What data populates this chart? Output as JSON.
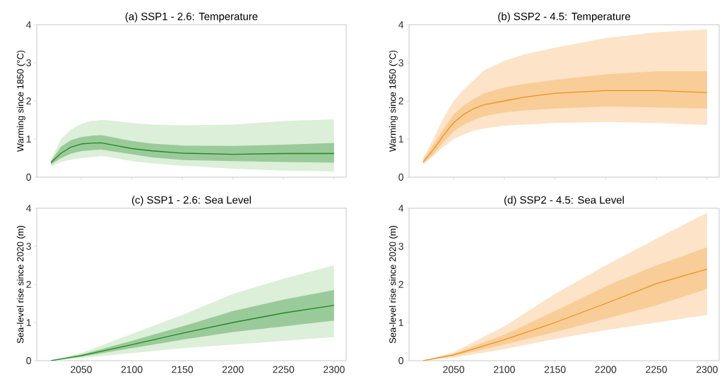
{
  "chart_data": [
    {
      "type": "line",
      "title": "(a) SSP1 - 2.6: Temperature",
      "ylabel": "Warming since 1850  (°C)",
      "xlim": [
        2006,
        2312
      ],
      "ylim": [
        0,
        4
      ],
      "xticks": [
        2050,
        2100,
        2150,
        2200,
        2250,
        2300
      ],
      "yticks": [
        0,
        1,
        2,
        3,
        4
      ],
      "tick_labels": "y",
      "x": [
        2020,
        2030,
        2040,
        2050,
        2060,
        2070,
        2080,
        2100,
        2120,
        2150,
        2200,
        2250,
        2300
      ],
      "series": [
        {
          "color": "#dcefd8",
          "values": [
            null,
            null,
            null,
            null,
            null,
            null,
            null,
            null,
            null,
            null,
            null,
            null,
            null
          ],
          "lower": [
            0.28,
            0.4,
            0.46,
            0.5,
            0.53,
            0.55,
            0.52,
            0.42,
            0.36,
            0.3,
            0.22,
            0.17,
            0.15
          ],
          "upper": [
            0.45,
            1.0,
            1.25,
            1.4,
            1.47,
            1.5,
            1.48,
            1.42,
            1.38,
            1.36,
            1.38,
            1.47,
            1.52
          ]
        },
        {
          "color": "#1f8a1f",
          "values": [
            0.38,
            0.63,
            0.79,
            0.87,
            0.89,
            0.9,
            0.85,
            0.75,
            0.69,
            0.63,
            0.6,
            0.62,
            0.62
          ],
          "lower": [
            0.33,
            0.5,
            0.62,
            0.68,
            0.71,
            0.72,
            0.68,
            0.6,
            0.52,
            0.45,
            0.42,
            0.4,
            0.38
          ],
          "upper": [
            0.42,
            0.8,
            0.97,
            1.05,
            1.09,
            1.1,
            1.05,
            0.95,
            0.88,
            0.83,
            0.82,
            0.85,
            0.9
          ]
        }
      ]
    },
    {
      "type": "line",
      "title": "(b) SSP2 - 4.5: Temperature",
      "ylabel": "Warming since 1850 (°C)",
      "xlim": [
        2006,
        2312
      ],
      "ylim": [
        0,
        4
      ],
      "xticks": [
        2050,
        2100,
        2150,
        2200,
        2250,
        2300
      ],
      "yticks": [
        0,
        1,
        2,
        3,
        4
      ],
      "tick_labels": "y",
      "x": [
        2020,
        2030,
        2040,
        2050,
        2060,
        2070,
        2080,
        2100,
        2120,
        2150,
        2200,
        2250,
        2300
      ],
      "series": [
        {
          "color": "#fde3c8",
          "values": [
            null,
            null,
            null,
            null,
            null,
            null,
            null,
            null,
            null,
            null,
            null,
            null,
            null
          ],
          "lower": [
            0.33,
            0.55,
            0.8,
            1.0,
            1.12,
            1.22,
            1.28,
            1.35,
            1.38,
            1.42,
            1.45,
            1.42,
            1.37
          ],
          "upper": [
            0.5,
            1.0,
            1.55,
            2.0,
            2.3,
            2.55,
            2.8,
            3.05,
            3.22,
            3.4,
            3.65,
            3.8,
            3.88
          ]
        },
        {
          "color": "#f0901a",
          "values": [
            0.4,
            0.72,
            1.1,
            1.43,
            1.65,
            1.8,
            1.9,
            2.0,
            2.1,
            2.2,
            2.27,
            2.27,
            2.22
          ],
          "lower": [
            0.36,
            0.6,
            0.92,
            1.2,
            1.38,
            1.5,
            1.6,
            1.7,
            1.75,
            1.8,
            1.85,
            1.83,
            1.8
          ],
          "upper": [
            0.45,
            0.85,
            1.27,
            1.65,
            1.88,
            2.05,
            2.2,
            2.35,
            2.45,
            2.55,
            2.7,
            2.78,
            2.78
          ]
        }
      ]
    },
    {
      "type": "line",
      "title": "(c) SSP1 - 2.6: Sea Level",
      "ylabel": "Sea-level rise since 2020 (m)",
      "xlim": [
        2006,
        2312
      ],
      "ylim": [
        0,
        4
      ],
      "xticks": [
        2050,
        2100,
        2150,
        2200,
        2250,
        2300
      ],
      "yticks": [
        0,
        1,
        2,
        3,
        4
      ],
      "x": [
        2020,
        2050,
        2100,
        2150,
        2200,
        2250,
        2300
      ],
      "series": [
        {
          "color": "#dcefd8",
          "values": [
            null,
            null,
            null,
            null,
            null,
            null,
            null
          ],
          "lower": [
            0,
            0.07,
            0.2,
            0.33,
            0.42,
            0.52,
            0.62
          ],
          "upper": [
            0,
            0.2,
            0.7,
            1.2,
            1.75,
            2.15,
            2.5
          ]
        },
        {
          "color": "#1f8a1f",
          "values": [
            0,
            0.13,
            0.42,
            0.72,
            1.0,
            1.25,
            1.45
          ],
          "lower": [
            0,
            0.1,
            0.33,
            0.55,
            0.75,
            0.9,
            1.05
          ],
          "upper": [
            0,
            0.16,
            0.52,
            0.9,
            1.3,
            1.6,
            1.85
          ]
        }
      ]
    },
    {
      "type": "line",
      "title": "(d) SSP2 - 4.5: Sea Level",
      "ylabel": "Sea-level rise since 2020 (m)",
      "xlim": [
        2006,
        2312
      ],
      "ylim": [
        0,
        4
      ],
      "xticks": [
        2050,
        2100,
        2150,
        2200,
        2250,
        2300
      ],
      "yticks": [
        0,
        1,
        2,
        3,
        4
      ],
      "x": [
        2020,
        2050,
        2100,
        2150,
        2200,
        2250,
        2300
      ],
      "series": [
        {
          "color": "#fde3c8",
          "values": [
            null,
            null,
            null,
            null,
            null,
            null,
            null
          ],
          "lower": [
            0,
            0.08,
            0.3,
            0.57,
            0.8,
            1.0,
            1.2
          ],
          "upper": [
            0,
            0.22,
            0.9,
            1.75,
            2.5,
            3.2,
            3.88
          ]
        },
        {
          "color": "#f0901a",
          "values": [
            0,
            0.15,
            0.55,
            1.0,
            1.5,
            2.02,
            2.4
          ],
          "lower": [
            0,
            0.12,
            0.42,
            0.75,
            1.1,
            1.45,
            1.88
          ],
          "upper": [
            0,
            0.18,
            0.68,
            1.3,
            1.95,
            2.5,
            2.97
          ]
        }
      ]
    }
  ]
}
